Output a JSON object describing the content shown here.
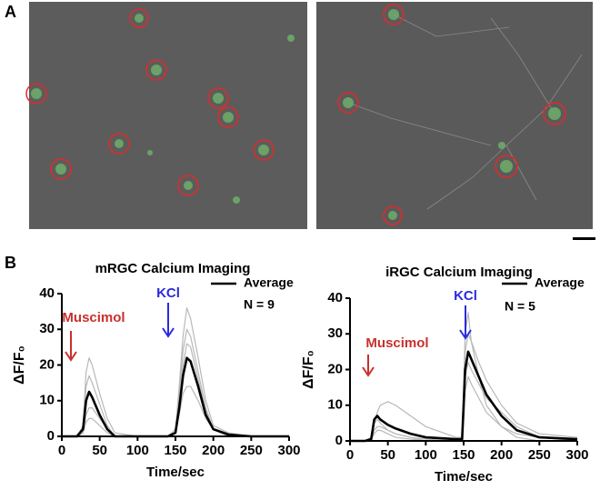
{
  "panel_labels": [
    "A",
    "B"
  ],
  "chart_data": [
    {
      "type": "line",
      "title": "mRGC Calcium Imaging",
      "xlabel": "Time/sec",
      "ylabel": "ΔF/F₀",
      "xlim": [
        0,
        300
      ],
      "xticks": [
        0,
        50,
        100,
        150,
        200,
        250,
        300
      ],
      "ylim": [
        0,
        40
      ],
      "yticks": [
        0,
        10,
        20,
        30,
        40
      ],
      "x": [
        0,
        20,
        28,
        32,
        36,
        40,
        50,
        60,
        70,
        100,
        140,
        150,
        155,
        160,
        165,
        170,
        180,
        190,
        200,
        220,
        250,
        300
      ],
      "series": [
        {
          "color": "#b8b8b8",
          "values": [
            0,
            0,
            3,
            18,
            22,
            20,
            12,
            5,
            1,
            0,
            0,
            2,
            14,
            28,
            36,
            33,
            22,
            10,
            3,
            1,
            0,
            0
          ]
        },
        {
          "color": "#b8b8b8",
          "values": [
            0,
            0,
            2,
            14,
            17,
            15,
            9,
            3,
            0,
            0,
            0,
            1,
            12,
            24,
            30,
            28,
            18,
            8,
            2,
            0.5,
            0,
            0
          ]
        },
        {
          "color": "#b8b8b8",
          "values": [
            0,
            0,
            1,
            6,
            8,
            8,
            5,
            2,
            0,
            0,
            0,
            1,
            6,
            12,
            14,
            14,
            10,
            5,
            2,
            0,
            0,
            0
          ]
        },
        {
          "color": "#b8b8b8",
          "values": [
            0,
            0,
            1,
            4,
            5,
            5,
            3,
            1,
            0,
            0,
            0,
            1,
            10,
            20,
            26,
            25,
            16,
            7,
            2,
            0,
            0,
            0
          ]
        },
        {
          "name": "Average",
          "color": "#000000",
          "values": [
            0,
            0,
            2,
            10,
            12.5,
            11,
            6,
            2,
            0,
            0,
            0,
            1,
            8,
            17,
            22,
            21,
            14,
            6,
            2,
            0.5,
            0,
            0
          ]
        }
      ],
      "legend_note": "N = 9",
      "annotations": [
        {
          "text": "Muscimol",
          "color": "#c8302c"
        },
        {
          "text": "KCl",
          "color": "#2a2ae0"
        }
      ]
    },
    {
      "type": "line",
      "title": "iRGC Calcium Imaging",
      "xlabel": "Time/sec",
      "ylabel": "ΔF/F₀",
      "xlim": [
        0,
        300
      ],
      "xticks": [
        0,
        50,
        100,
        150,
        200,
        250,
        300
      ],
      "ylim": [
        0,
        40
      ],
      "yticks": [
        0,
        10,
        20,
        30,
        40
      ],
      "x": [
        0,
        20,
        28,
        32,
        36,
        40,
        50,
        60,
        80,
        100,
        140,
        148,
        150,
        152,
        156,
        160,
        170,
        180,
        200,
        220,
        250,
        300
      ],
      "series": [
        {
          "color": "#b8b8b8",
          "values": [
            0,
            0,
            1,
            5,
            8,
            10,
            11,
            10,
            7,
            4,
            1,
            1,
            12,
            25,
            30,
            28,
            22,
            17,
            10,
            5,
            2,
            1
          ]
        },
        {
          "color": "#b8b8b8",
          "values": [
            0,
            0,
            0.5,
            5,
            6,
            5,
            3,
            2,
            1,
            0,
            0,
            0,
            15,
            30,
            36,
            28,
            18,
            10,
            4,
            1,
            0,
            0
          ]
        },
        {
          "color": "#b8b8b8",
          "values": [
            0,
            0,
            0.5,
            3,
            4,
            4,
            3,
            2,
            1,
            0.5,
            0,
            0,
            8,
            18,
            22,
            20,
            16,
            12,
            8,
            4,
            1,
            0
          ]
        },
        {
          "color": "#b8b8b8",
          "values": [
            0,
            0,
            0.5,
            2,
            3,
            3,
            2,
            1,
            0.5,
            0,
            0,
            0,
            6,
            14,
            18,
            16,
            12,
            8,
            4,
            2,
            1,
            0
          ]
        },
        {
          "name": "Average",
          "color": "#000000",
          "values": [
            0,
            0,
            0.5,
            6,
            7,
            6,
            4.5,
            3.5,
            2,
            1,
            0.5,
            0.5,
            10,
            20,
            25,
            23,
            18,
            13,
            7,
            3,
            1,
            0.5
          ]
        }
      ],
      "legend_note": "N = 5",
      "annotations": [
        {
          "text": "Muscimol",
          "color": "#c8302c"
        },
        {
          "text": "KCl",
          "color": "#2a2ae0"
        }
      ]
    }
  ]
}
